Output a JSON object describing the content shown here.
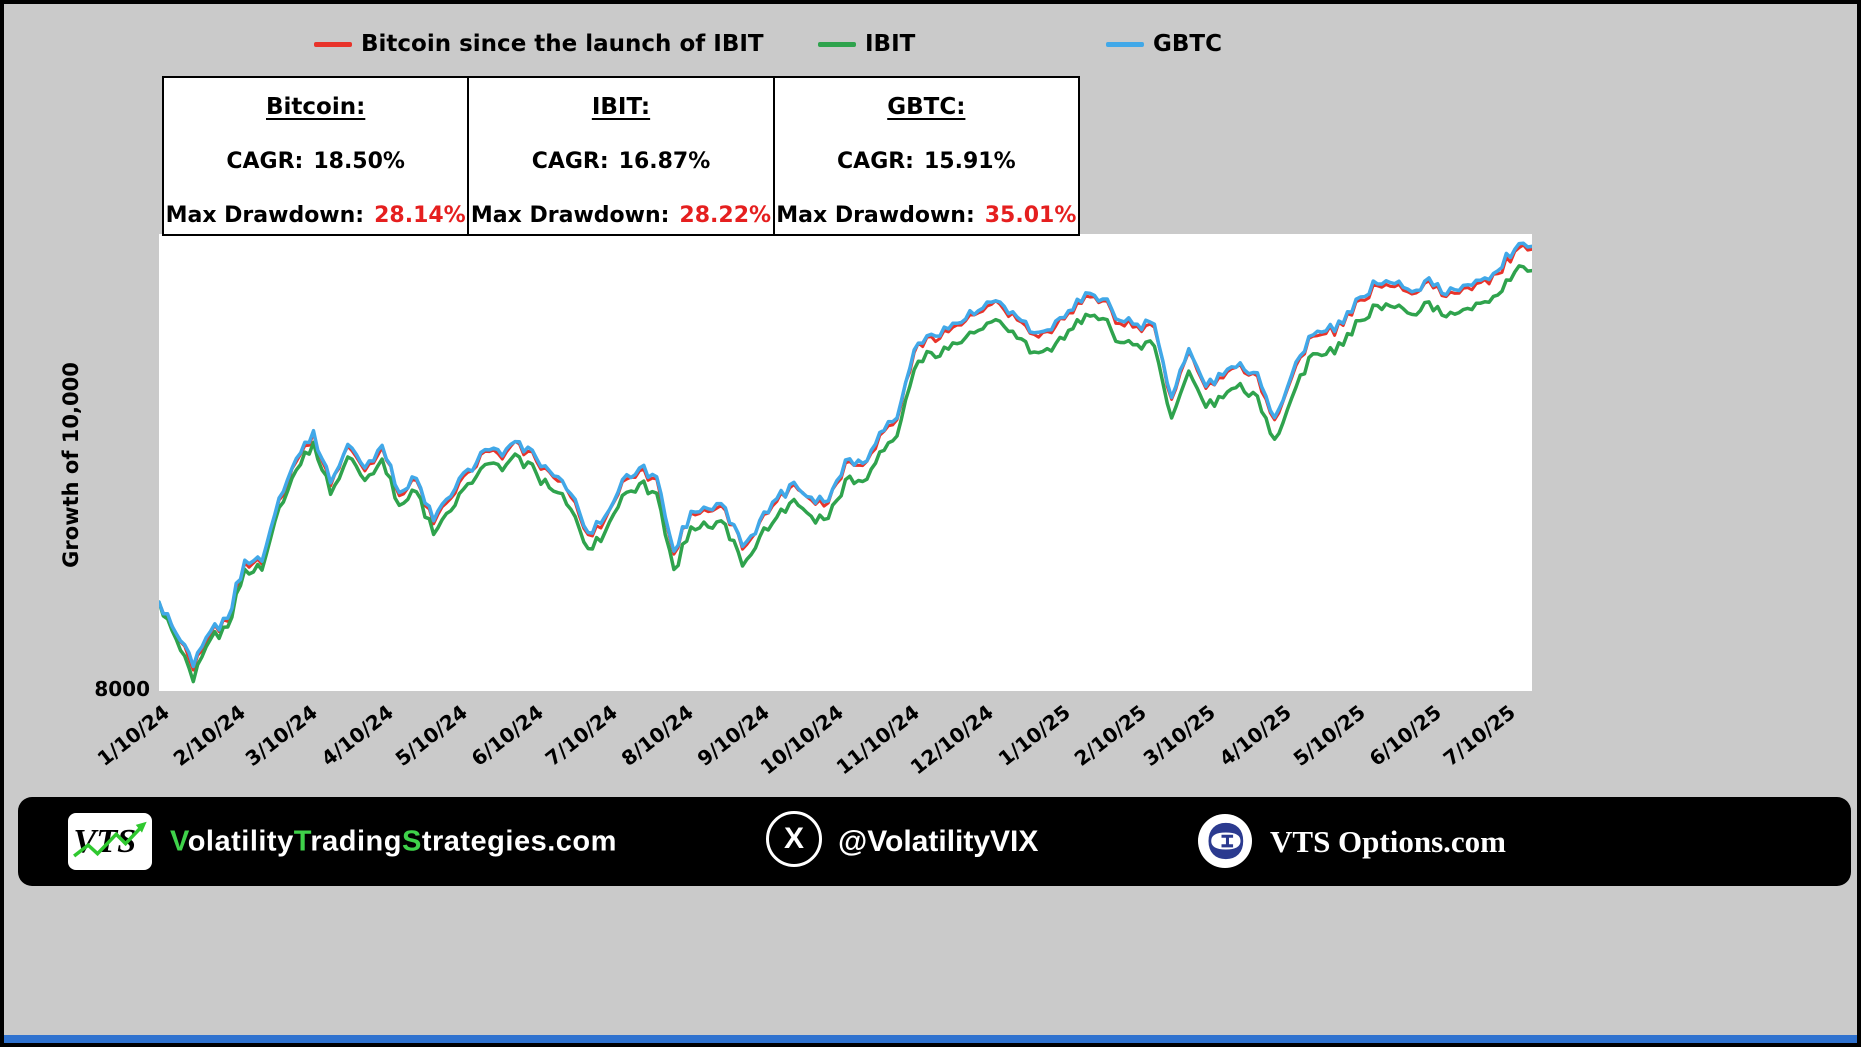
{
  "legend": {
    "items": [
      {
        "label": "Bitcoin since the launch of IBIT",
        "color": "#e8332a"
      },
      {
        "label": "IBIT",
        "color": "#2fa34d"
      },
      {
        "label": "GBTC",
        "color": "#41a8e8"
      }
    ]
  },
  "stats_table": {
    "drawdown_color": "#e51f1f",
    "columns": [
      {
        "title": "Bitcoin:",
        "cagr_label": "CAGR:",
        "cagr_value": "18.50%",
        "drawdown_label": "Max Drawdown:",
        "drawdown_value": "28.14%"
      },
      {
        "title": "IBIT:",
        "cagr_label": "CAGR:",
        "cagr_value": "16.87%",
        "drawdown_label": "Max Drawdown:",
        "drawdown_value": "28.22%"
      },
      {
        "title": "GBTC:",
        "cagr_label": "CAGR:",
        "cagr_value": "15.91%",
        "drawdown_label": "Max Drawdown:",
        "drawdown_value": "35.01%"
      }
    ]
  },
  "chart_data": {
    "type": "line",
    "title": "Bitcoin since the launch of IBIT",
    "ylabel": "Growth of 10,000",
    "y_tick_labels": [
      "8000"
    ],
    "yscale": "log",
    "ylim": [
      7900,
      26500
    ],
    "x_start": "1/10/24",
    "x_end": "7/22/25",
    "frequency": "weekly",
    "x_tick_labels": [
      "1/10/24",
      "2/10/24",
      "3/10/24",
      "4/10/24",
      "5/10/24",
      "6/10/24",
      "7/10/24",
      "8/10/24",
      "9/10/24",
      "10/10/24",
      "11/10/24",
      "12/10/24",
      "1/10/25",
      "2/10/25",
      "3/10/25",
      "4/10/25",
      "5/10/25",
      "6/10/25",
      "7/10/25"
    ],
    "legend_position": "top",
    "grid": false,
    "series": [
      {
        "name": "Bitcoin",
        "color": "#e8332a",
        "values": [
          10000,
          9150,
          8350,
          9200,
          9500,
          11100,
          11050,
          13100,
          14500,
          15650,
          13600,
          15100,
          14150,
          15050,
          13250,
          13800,
          12300,
          13150,
          14100,
          14900,
          14600,
          15200,
          14500,
          13900,
          13200,
          11950,
          12450,
          13750,
          14150,
          13850,
          11350,
          12650,
          12700,
          12750,
          11500,
          12350,
          13050,
          13650,
          13100,
          13000,
          14450,
          14350,
          15550,
          16200,
          19350,
          20200,
          20450,
          21050,
          21600,
          22000,
          21100,
          20300,
          20400,
          21500,
          22500,
          22200,
          20900,
          20750,
          20700,
          17100,
          19400,
          17600,
          18100,
          18750,
          18200,
          16200,
          18100,
          20100,
          20350,
          20800,
          22250,
          23100,
          23050,
          22600,
          23400,
          22450,
          22950,
          23300,
          23850,
          25300,
          25450
        ]
      },
      {
        "name": "IBIT",
        "color": "#2fa34d",
        "values": [
          10000,
          9060,
          8100,
          9060,
          9360,
          10900,
          10880,
          12840,
          14180,
          15260,
          13300,
          14680,
          13800,
          14600,
          12920,
          13390,
          11960,
          12730,
          13680,
          14390,
          14160,
          14680,
          14040,
          13410,
          12780,
          11520,
          12040,
          13260,
          13670,
          13340,
          10900,
          12200,
          12200,
          12280,
          11000,
          11880,
          12520,
          13120,
          12550,
          12480,
          13830,
          13760,
          14880,
          15520,
          18500,
          19350,
          19530,
          20140,
          20610,
          21030,
          20110,
          19390,
          19440,
          20530,
          21420,
          21180,
          19880,
          19770,
          19690,
          16280,
          18430,
          16750,
          17180,
          17830,
          17250,
          15390,
          17160,
          19100,
          19270,
          19740,
          21070,
          21920,
          21810,
          21420,
          22140,
          21280,
          21690,
          22060,
          22540,
          23960,
          24050
        ]
      },
      {
        "name": "GBTC",
        "color": "#41a8e8",
        "values": [
          10000,
          9200,
          8430,
          9250,
          9580,
          11170,
          11140,
          13170,
          14620,
          15740,
          13710,
          15180,
          14260,
          15140,
          13360,
          13870,
          12400,
          13230,
          14210,
          14970,
          14720,
          15290,
          14620,
          13970,
          13310,
          12020,
          12550,
          13820,
          14260,
          13930,
          11440,
          12710,
          12800,
          12830,
          11590,
          12410,
          13150,
          13730,
          13200,
          13070,
          14570,
          14440,
          15670,
          16280,
          19500,
          20320,
          20610,
          21160,
          21770,
          22130,
          21270,
          20400,
          20560,
          21630,
          22680,
          22310,
          21070,
          20870,
          20870,
          17190,
          19560,
          17700,
          18240,
          18840,
          18350,
          16300,
          18240,
          20200,
          20510,
          20920,
          22430,
          23220,
          23230,
          22740,
          23590,
          22560,
          23130,
          23440,
          24040,
          25450,
          25650
        ]
      }
    ]
  },
  "footer": {
    "logo_text": "VTS",
    "site_full": "VolatilityTradingStrategies.com",
    "site_parts": [
      {
        "text": "V",
        "color": "#3fd24a"
      },
      {
        "text": "olatility",
        "color": "#ffffff"
      },
      {
        "text": "T",
        "color": "#3fd24a"
      },
      {
        "text": "rading",
        "color": "#ffffff"
      },
      {
        "text": "S",
        "color": "#3fd24a"
      },
      {
        "text": "trategies.com",
        "color": "#ffffff"
      }
    ],
    "x_handle": "@VolatilityVIX",
    "options_site": "VTS Options.com",
    "icons": {
      "x_glyph": "X",
      "theta_glyph": "Θ"
    },
    "accent_green": "#2fc82f",
    "theta_blue": "#2b3a8f",
    "bottom_strip_color": "#2f72cf"
  }
}
